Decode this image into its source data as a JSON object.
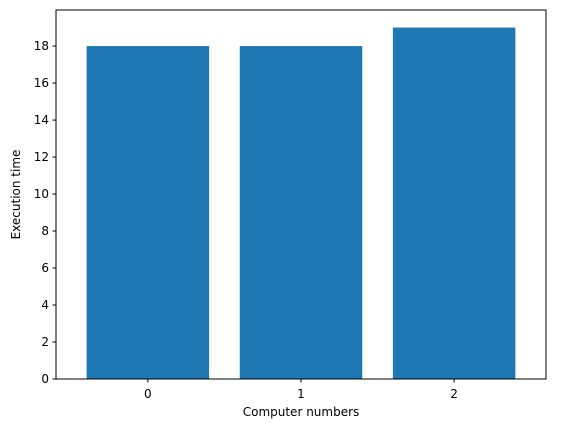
{
  "chart_data": {
    "type": "bar",
    "title": "",
    "xlabel": "Computer numbers",
    "ylabel": "Execution time",
    "categories": [
      "0",
      "1",
      "2"
    ],
    "values": [
      18,
      18,
      19
    ],
    "ylim": [
      0,
      19.95
    ],
    "yticks": [
      0,
      2,
      4,
      6,
      8,
      10,
      12,
      14,
      16,
      18
    ],
    "grid": false,
    "legend": "none",
    "bar_color": "#1f77b4"
  }
}
